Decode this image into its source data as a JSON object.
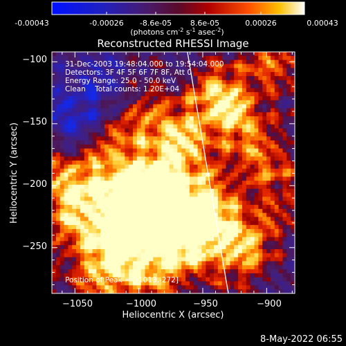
{
  "colorbar": {
    "ticks": [
      "-0.00043",
      "-0.00026",
      "-8.6e-05",
      "8.6e-05",
      "0.00026",
      "0.00043"
    ],
    "units_main": "(photons cm",
    "units_exp1": "-2",
    "units_mid": " s",
    "units_exp2": "-1",
    "units_mid2": " asec",
    "units_exp3": "-2",
    "units_end": ")",
    "colors": [
      "#0000ff",
      "#2a1a8a",
      "#4a1a6a",
      "#8a0000",
      "#ff3000",
      "#ffa000",
      "#ffffa0",
      "#ffffff"
    ]
  },
  "chart_data": {
    "type": "heatmap",
    "title": "Reconstructed RHESSI Image",
    "xlabel": "Heliocentric X (arcsec)",
    "ylabel": "Heliocentric Y (arcsec)",
    "xlim": [
      -1068,
      -878
    ],
    "ylim": [
      -287,
      -92
    ],
    "xticks": [
      -1050,
      -1000,
      -950,
      -900
    ],
    "yticks": [
      -100,
      -150,
      -200,
      -250
    ],
    "xtick_labels": [
      "−1050",
      "−1000",
      "−950",
      "−900"
    ],
    "ytick_labels": [
      "−100",
      "−150",
      "−200",
      "−250"
    ],
    "colorbar_range": [
      -0.00043,
      0.00043
    ],
    "limb_line": {
      "x": [
        -962,
        -930
      ],
      "y": [
        -92,
        -287
      ]
    },
    "annotations": [
      "31-Dec-2003 19:48:04.000 to 19:54:04.000",
      "Detectors: 3F 4F 5F 6F 7F 8F, Att 0",
      "Energy Range: 25.0 - 50.0 keV",
      "Clean    Total counts: 1.20E+04"
    ],
    "peak_label": "Position of Peak = [-1013,-272]"
  },
  "footer": {
    "date": "8-May-2022 06:55"
  }
}
